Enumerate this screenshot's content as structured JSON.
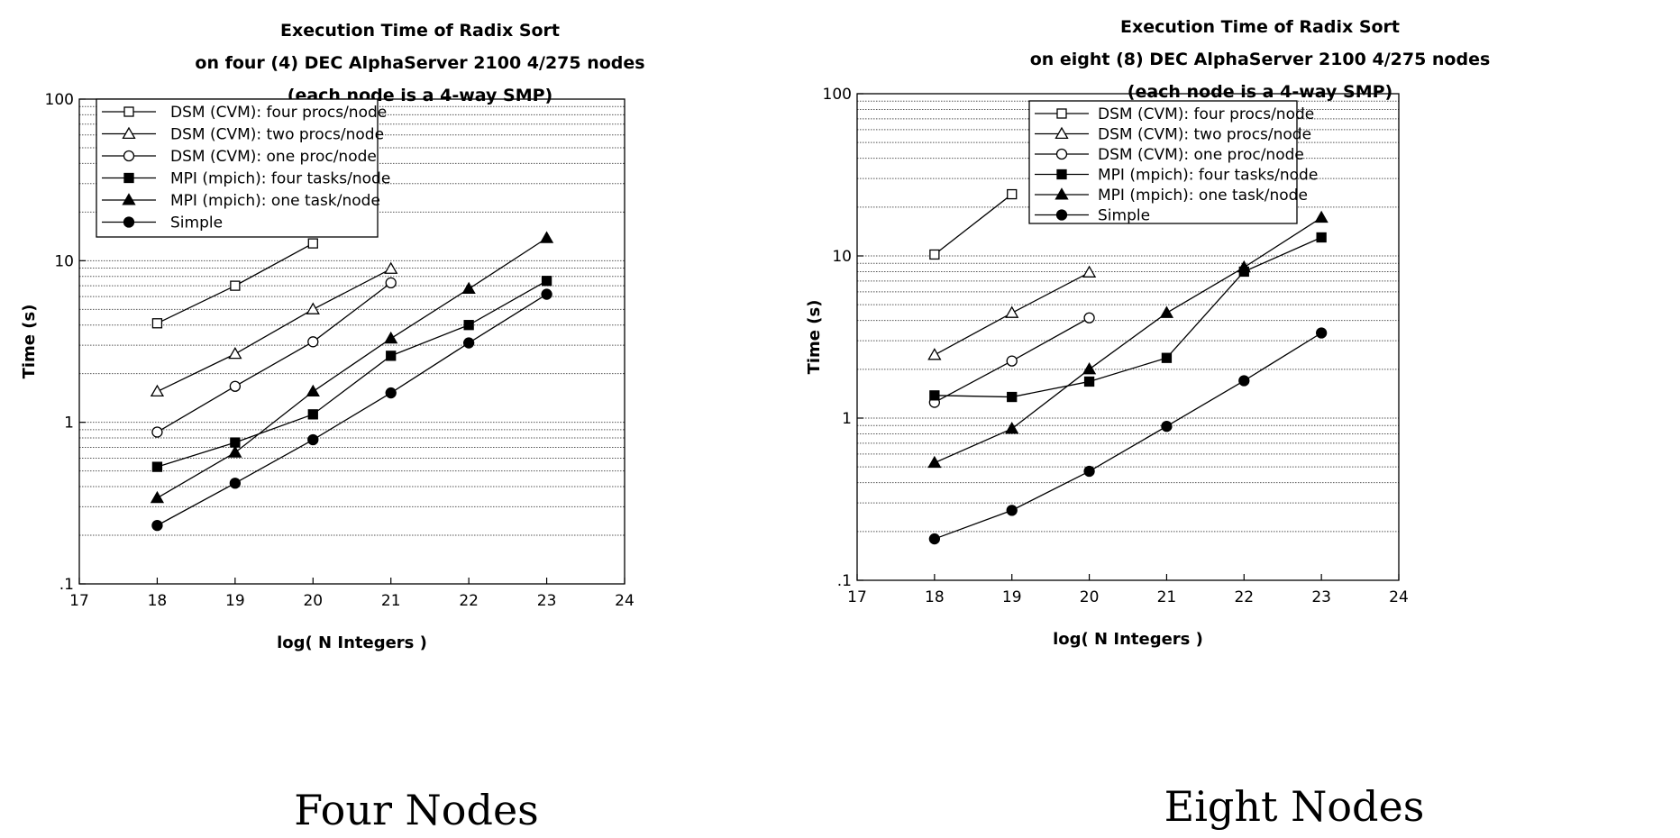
{
  "chart_data": [
    {
      "type": "line",
      "title_lines": [
        "Execution Time of Radix Sort",
        "on four (4) DEC AlphaServer 2100 4/275 nodes",
        "(each node is a 4-way SMP)"
      ],
      "caption": "Four Nodes",
      "xlabel": "log( N Integers )",
      "ylabel": "Time (s)",
      "xlim": [
        17,
        24
      ],
      "ylim": [
        0.1,
        100
      ],
      "yscale": "log",
      "xticks": [
        "17",
        "18",
        "19",
        "20",
        "21",
        "22",
        "23",
        "24"
      ],
      "yticks": [
        ".1",
        "1",
        "10",
        "100"
      ],
      "grid": "horizontal minor (dotted)",
      "legend_position": "top-left",
      "series": [
        {
          "name": "DSM (CVM): four procs/node",
          "marker": "open-square",
          "x": [
            18,
            19,
            20
          ],
          "y": [
            4.1,
            7.0,
            12.8
          ]
        },
        {
          "name": "DSM (CVM): two procs/node",
          "marker": "open-triangle",
          "x": [
            18,
            19,
            20,
            21
          ],
          "y": [
            1.55,
            2.65,
            5.0,
            8.9
          ]
        },
        {
          "name": "DSM (CVM): one proc/node",
          "marker": "open-circle",
          "x": [
            18,
            19,
            20,
            21
          ],
          "y": [
            0.87,
            1.67,
            3.15,
            7.3
          ]
        },
        {
          "name": "MPI (mpich): four tasks/node",
          "marker": "filled-square",
          "x": [
            18,
            19,
            20,
            21,
            22,
            23
          ],
          "y": [
            0.53,
            0.75,
            1.12,
            2.58,
            4.0,
            7.5
          ]
        },
        {
          "name": "MPI (mpich): one task/node",
          "marker": "filled-triangle",
          "x": [
            18,
            19,
            20,
            21,
            22,
            23
          ],
          "y": [
            0.34,
            0.65,
            1.55,
            3.3,
            6.7,
            13.8
          ]
        },
        {
          "name": "Simple",
          "marker": "filled-circle",
          "x": [
            18,
            19,
            20,
            21,
            22,
            23
          ],
          "y": [
            0.23,
            0.42,
            0.78,
            1.52,
            3.1,
            6.2
          ]
        }
      ]
    },
    {
      "type": "line",
      "title_lines": [
        "Execution Time of Radix Sort",
        "on eight (8) DEC AlphaServer 2100 4/275 nodes",
        "(each node is a 4-way SMP)"
      ],
      "caption": "Eight Nodes",
      "xlabel": "log( N Integers )",
      "ylabel": "Time (s)",
      "xlim": [
        17,
        24
      ],
      "ylim": [
        0.1,
        100
      ],
      "yscale": "log",
      "xticks": [
        "17",
        "18",
        "19",
        "20",
        "21",
        "22",
        "23",
        "24"
      ],
      "yticks": [
        ".1",
        "1",
        "10",
        "100"
      ],
      "grid": "horizontal minor (dotted)",
      "legend_position": "top-center",
      "series": [
        {
          "name": "DSM (CVM): four procs/node",
          "marker": "open-square",
          "x": [
            18,
            19
          ],
          "y": [
            10.2,
            24.0
          ]
        },
        {
          "name": "DSM (CVM): two procs/node",
          "marker": "open-triangle",
          "x": [
            18,
            19,
            20
          ],
          "y": [
            2.45,
            4.45,
            7.9
          ]
        },
        {
          "name": "DSM (CVM): one proc/node",
          "marker": "open-circle",
          "x": [
            18,
            19,
            20
          ],
          "y": [
            1.25,
            2.25,
            4.15
          ]
        },
        {
          "name": "MPI (mpich): four tasks/node",
          "marker": "filled-square",
          "x": [
            18,
            19,
            20,
            21,
            22,
            23
          ],
          "y": [
            1.38,
            1.35,
            1.68,
            2.35,
            8.0,
            13.0
          ]
        },
        {
          "name": "MPI (mpich): one task/node",
          "marker": "filled-triangle",
          "x": [
            18,
            19,
            20,
            21,
            22,
            23
          ],
          "y": [
            0.53,
            0.86,
            2.0,
            4.45,
            8.5,
            17.2
          ]
        },
        {
          "name": "Simple",
          "marker": "filled-circle",
          "x": [
            18,
            19,
            20,
            21,
            22,
            23
          ],
          "y": [
            0.18,
            0.27,
            0.47,
            0.89,
            1.7,
            3.35
          ]
        }
      ]
    }
  ]
}
